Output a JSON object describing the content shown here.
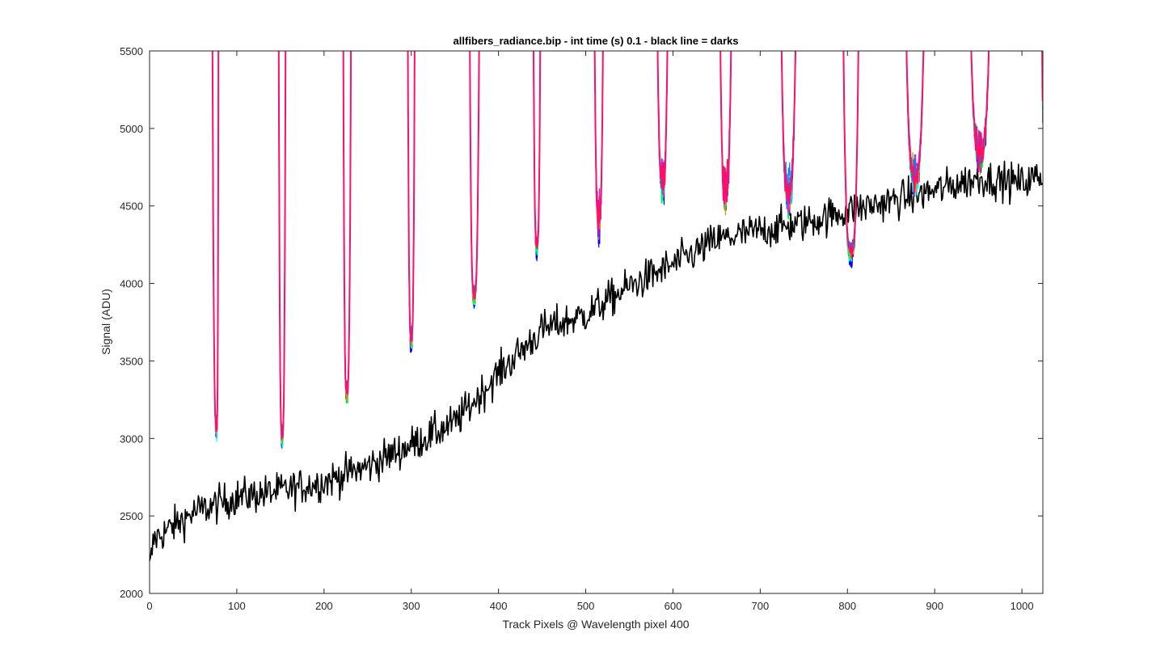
{
  "chart_data": {
    "type": "line",
    "title": "allfibers_radiance.bip - int time (s) 0.1 - black line = darks",
    "xlabel": "Track Pixels @ Wavelength pixel 400",
    "ylabel": "Signal (ADU)",
    "xlim": [
      0,
      1024
    ],
    "ylim": [
      2000,
      5500
    ],
    "xticks": [
      0,
      100,
      200,
      300,
      400,
      500,
      600,
      700,
      800,
      900,
      1000
    ],
    "yticks": [
      2000,
      2500,
      3000,
      3500,
      4000,
      4500,
      5000,
      5500
    ],
    "grid": false,
    "legend": "none",
    "colors": {
      "darks": "#000000",
      "fiber_main": "#ff0f6a",
      "fiber_accents": [
        "#0000ff",
        "#00ffff",
        "#00ff00",
        "#ff8000",
        "#ff00ff",
        "#0080ff"
      ]
    },
    "series": [
      {
        "role": "darks",
        "x_start": 0,
        "x_end": 1024,
        "trend_x": [
          0,
          5,
          50,
          100,
          150,
          200,
          250,
          300,
          350,
          400,
          450,
          500,
          550,
          600,
          650,
          700,
          750,
          800,
          850,
          900,
          950,
          1000,
          1024
        ],
        "trend_y": [
          2150,
          2350,
          2520,
          2620,
          2660,
          2720,
          2820,
          2960,
          3100,
          3420,
          3700,
          3800,
          3980,
          4120,
          4280,
          4340,
          4390,
          4470,
          4530,
          4600,
          4680,
          4650,
          4700
        ],
        "noise_sd": 85
      },
      {
        "role": "fibers",
        "dips": [
          {
            "center": 77,
            "min": 3050,
            "left_edge": 72,
            "right_edge": 79
          },
          {
            "center": 152,
            "min": 3000,
            "left_edge": 148,
            "right_edge": 156
          },
          {
            "center": 226,
            "min": 3280,
            "left_edge": 222,
            "right_edge": 231
          },
          {
            "center": 300,
            "min": 3620,
            "left_edge": 296,
            "right_edge": 304
          },
          {
            "center": 372,
            "min": 3900,
            "left_edge": 367,
            "right_edge": 378
          },
          {
            "center": 444,
            "min": 4230,
            "left_edge": 440,
            "right_edge": 448
          },
          {
            "center": 515,
            "min": 4400,
            "left_edge": 510,
            "right_edge": 520
          },
          {
            "center": 588,
            "min": 4640,
            "left_edge": 582,
            "right_edge": 594
          },
          {
            "center": 660,
            "min": 4580,
            "left_edge": 654,
            "right_edge": 667
          },
          {
            "center": 732,
            "min": 4560,
            "left_edge": 724,
            "right_edge": 741
          },
          {
            "center": 804,
            "min": 4180,
            "left_edge": 795,
            "right_edge": 813
          },
          {
            "center": 877,
            "min": 4680,
            "left_edge": 867,
            "right_edge": 888
          },
          {
            "center": 952,
            "min": 4830,
            "left_edge": 941,
            "right_edge": 963
          },
          {
            "center": 1024,
            "min": 5220,
            "left_edge": 1023,
            "right_edge": 1024
          }
        ]
      }
    ]
  }
}
